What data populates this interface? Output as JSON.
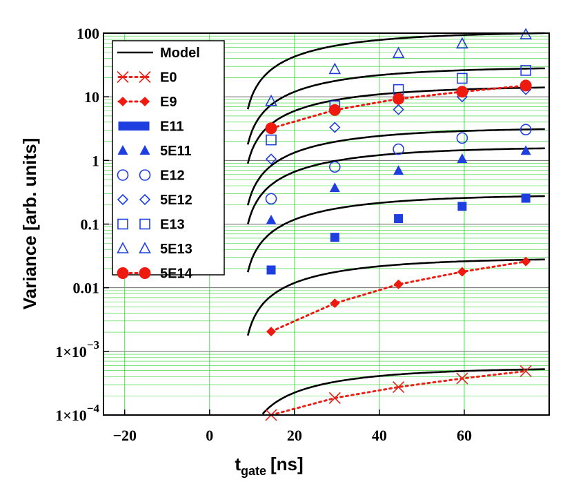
{
  "chart_data": {
    "type": "line",
    "title": "",
    "xlabel_main": "t",
    "xlabel_sub": "gate",
    "xlabel_unit": "[ns]",
    "ylabel": "Variance [arb. units]",
    "xlim": [
      -25,
      80
    ],
    "ylim": [
      0.0001,
      100
    ],
    "yscale": "log",
    "grid": true,
    "legend_position": "top-left",
    "x_ticks": [
      -20,
      0,
      20,
      40,
      60
    ],
    "x_tick_labels": [
      "−20",
      "0",
      "20",
      "40",
      "60"
    ],
    "y_ticks": [
      100,
      10,
      1,
      0.1,
      0.01,
      0.001,
      0.0001
    ],
    "y_tick_labels": [
      "100",
      "10",
      "1",
      "0.1",
      "0.01",
      "1×10",
      "1×10"
    ],
    "y_tick_exponents": [
      "",
      "",
      "",
      "",
      "",
      "−3",
      "−4"
    ],
    "gate_times": [
      14.5,
      29.5,
      44.5,
      59.5,
      74.5
    ],
    "model_label": "Model",
    "model_color": "#000000",
    "model_x_range": [
      9,
      79
    ],
    "series": [
      {
        "name": "E0",
        "marker": "x",
        "color": "#e8231a",
        "dotted": true,
        "values": [
          0.0001,
          0.000185,
          0.000275,
          0.000375,
          0.00049
        ],
        "model_anchor": 0.000525
      },
      {
        "name": "E9",
        "marker": "diamond-filled",
        "color": "#ee1a10",
        "dotted": true,
        "values": [
          0.00205,
          0.0057,
          0.0113,
          0.0178,
          0.0258
        ],
        "model_anchor": 0.0278
      },
      {
        "name": "E11",
        "marker": "square-filled",
        "color": "#1f3ee0",
        "dotted": false,
        "values": [
          0.019,
          0.062,
          0.122,
          0.19,
          0.255
        ],
        "model_anchor": 0.275
      },
      {
        "name": "5E11",
        "marker": "triangle-filled",
        "color": "#1f3ee0",
        "dotted": false,
        "values": [
          0.115,
          0.37,
          0.69,
          1.06,
          1.42
        ],
        "model_anchor": 1.55
      },
      {
        "name": "E12",
        "marker": "circle-open",
        "color": "#1f3ee0",
        "dotted": false,
        "values": [
          0.25,
          0.79,
          1.5,
          2.25,
          3.05
        ],
        "model_anchor": 3.1
      },
      {
        "name": "5E12",
        "marker": "diamond-open",
        "color": "#1f3ee0",
        "dotted": false,
        "values": [
          1.05,
          3.3,
          6.3,
          10.0,
          13.0
        ],
        "model_anchor": 14.0
      },
      {
        "name": "E13",
        "marker": "square-open",
        "color": "#1f3ee0",
        "dotted": false,
        "values": [
          2.1,
          7.2,
          13.0,
          19.5,
          26.0
        ],
        "model_anchor": 28.0
      },
      {
        "name": "5E13",
        "marker": "triangle-open",
        "color": "#1f3ee0",
        "dotted": false,
        "values": [
          8.5,
          27.0,
          48.0,
          68.0,
          95.0
        ],
        "model_anchor": 100.0
      },
      {
        "name": "5E14",
        "marker": "circle-filled",
        "color": "#ee1a10",
        "dotted": true,
        "values": [
          3.2,
          6.2,
          9.3,
          12.0,
          15.0
        ],
        "model_anchor": null
      }
    ]
  },
  "colors": {
    "grid": "#2cd12c",
    "frame": "#000000",
    "background": "#ffffff"
  }
}
